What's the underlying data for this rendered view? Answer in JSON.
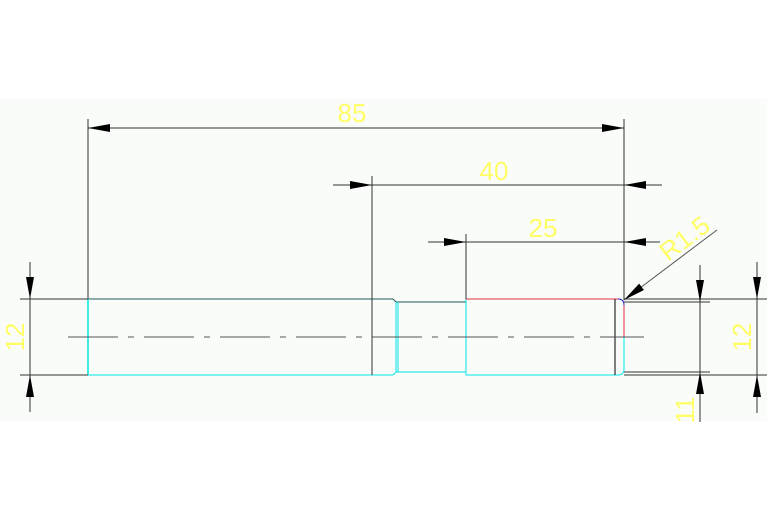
{
  "drawing": {
    "colors": {
      "background": "#fafcfa",
      "dimension_line": "#000000",
      "dimension_text": "#ffff66",
      "part_outline": "#00e5e5",
      "fillet_red": "#e03040",
      "fillet_blue": "#2020c0",
      "centerline": "#333333"
    },
    "dimensions": {
      "overall_length": "85",
      "length_40": "40",
      "length_25": "25",
      "fillet_radius": "R1.5",
      "left_diameter": "12",
      "right_diameter": "12",
      "neck_diameter": "11"
    }
  }
}
